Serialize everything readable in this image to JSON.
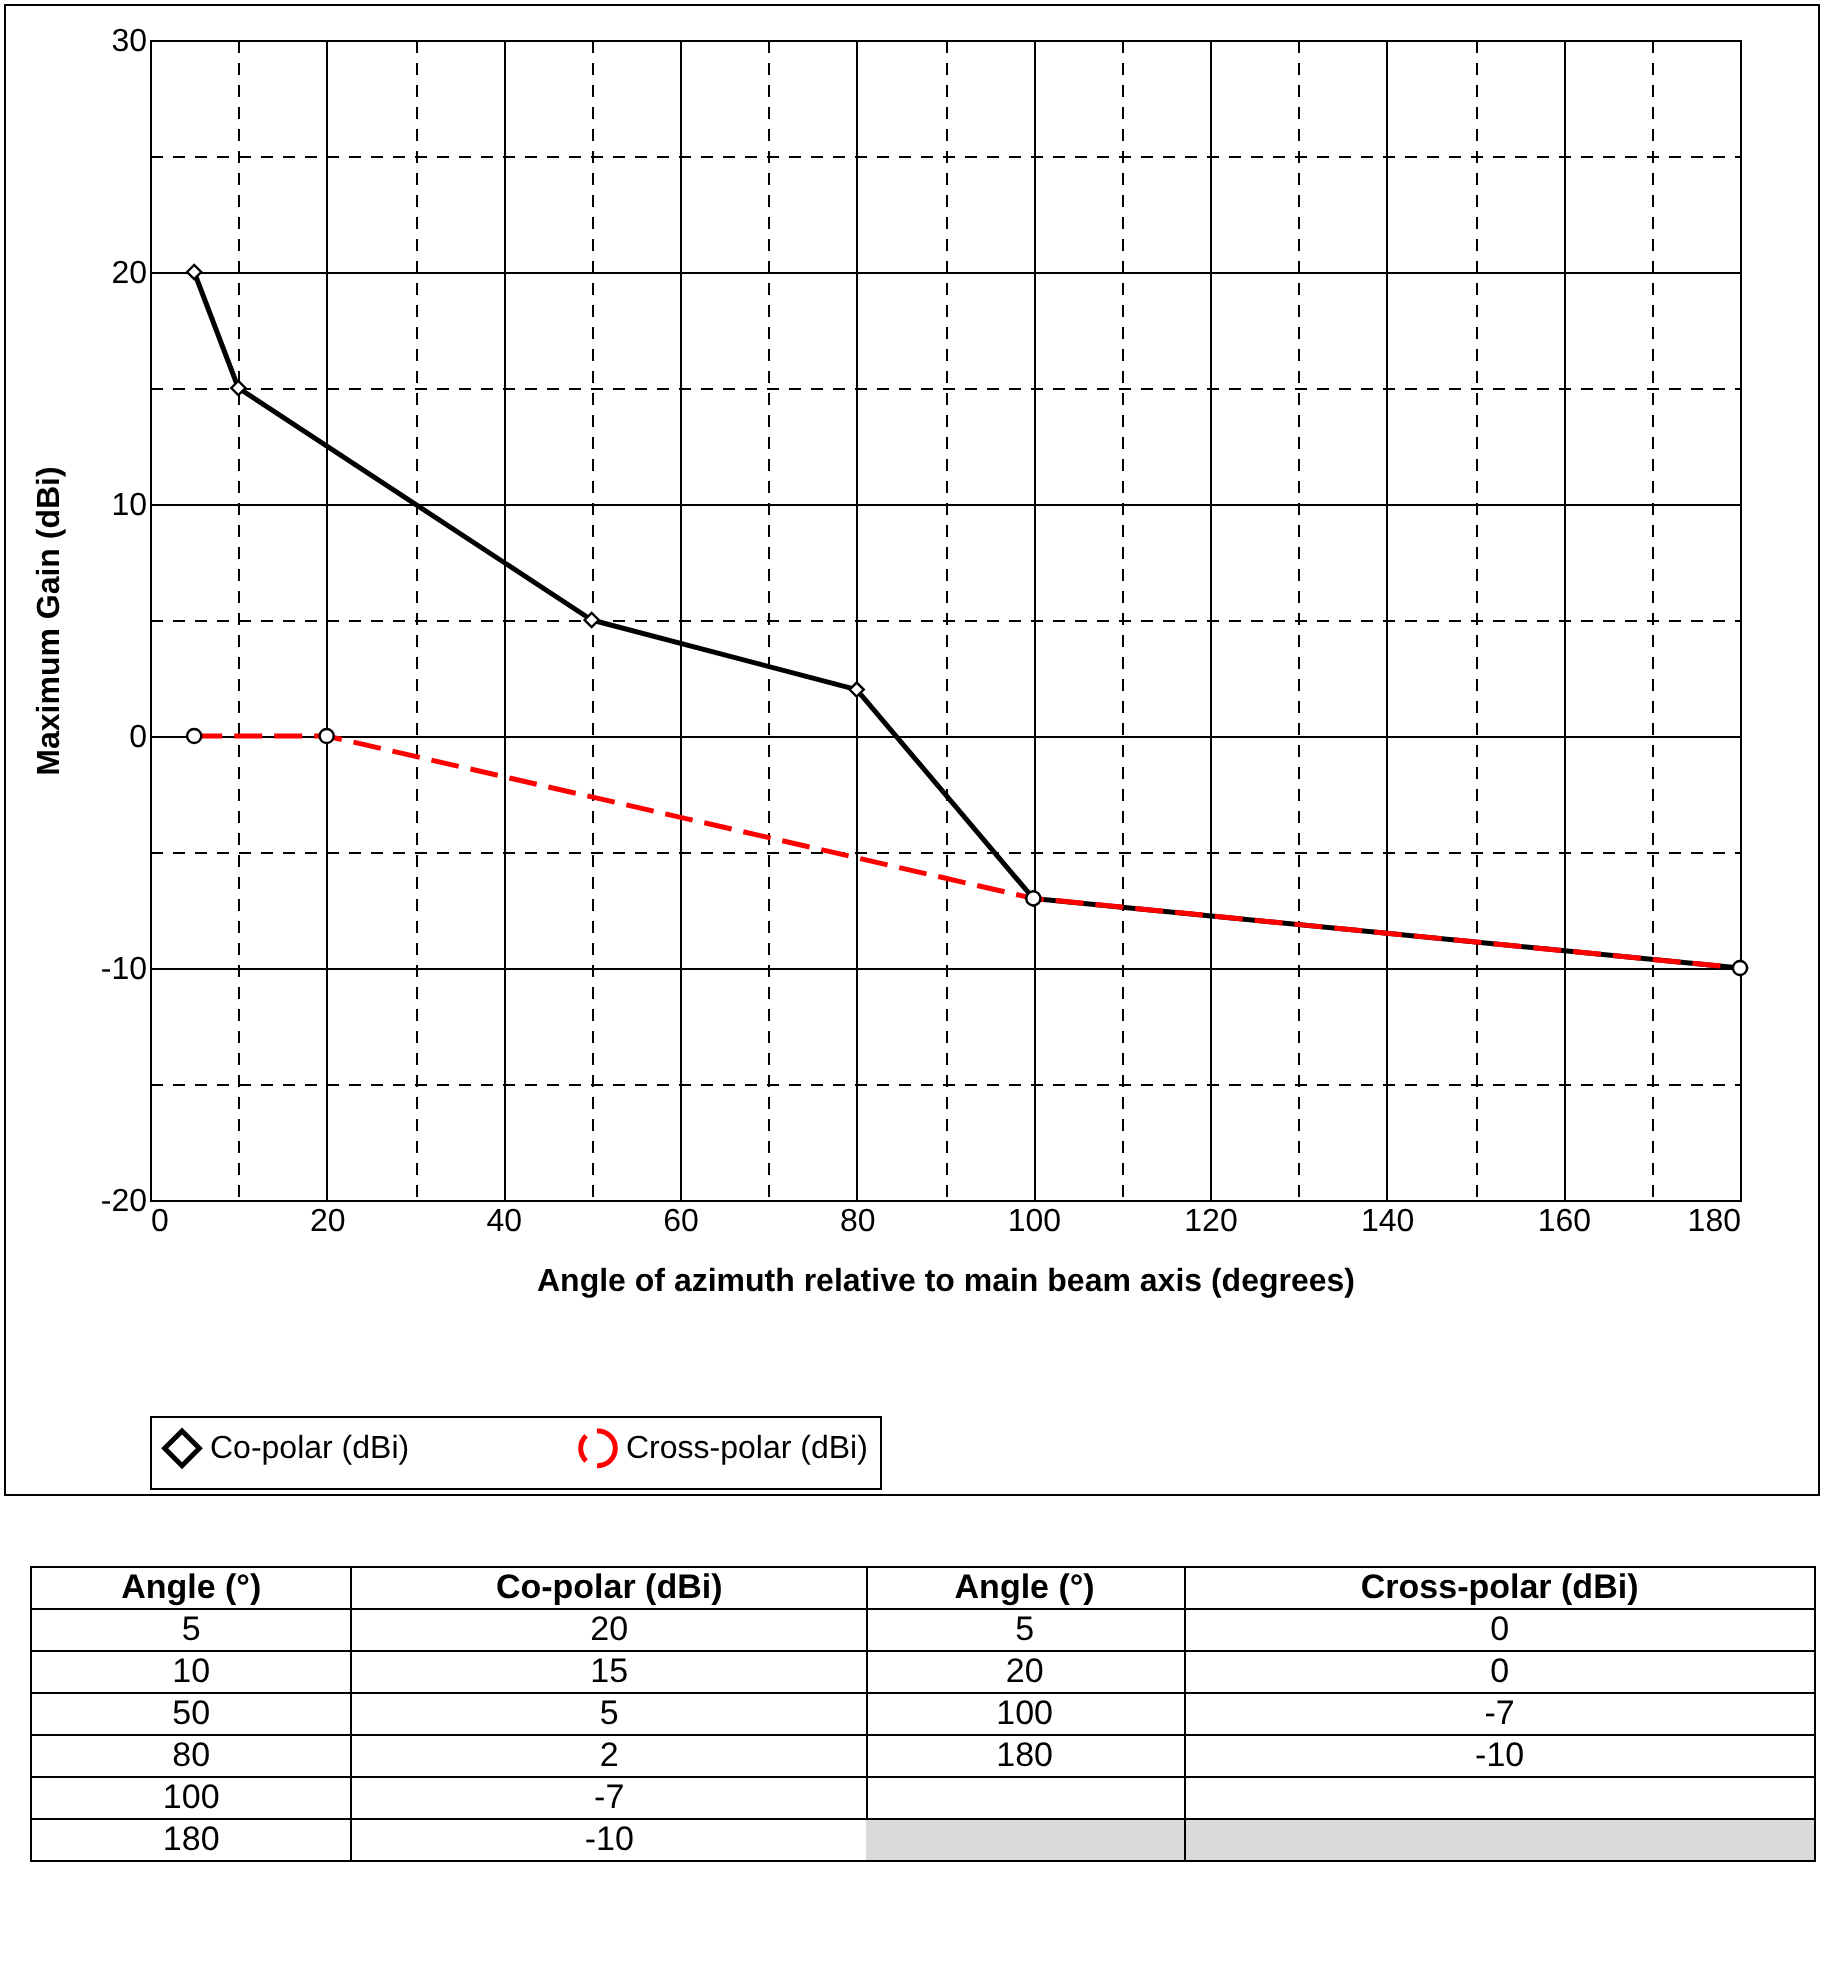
{
  "chart_data": [
    {
      "type": "line",
      "xlabel": "Angle of azimuth relative to main beam axis (degrees)",
      "ylabel": "Maximum Gain (dBi)",
      "xlim": [
        0,
        180
      ],
      "ylim": [
        -20,
        30
      ],
      "xticks": [
        0,
        {
          "value": 10,
          "label": null
        },
        20,
        {
          "value": 30,
          "label": null
        },
        40,
        {
          "value": 50,
          "label": null
        },
        60,
        {
          "value": 70,
          "label": null
        },
        80,
        {
          "value": 90,
          "label": null
        },
        100,
        {
          "value": 110,
          "label": null
        },
        120,
        {
          "value": 130,
          "label": null
        },
        140,
        {
          "value": 150,
          "label": null
        },
        160,
        {
          "value": 170,
          "label": null
        },
        180
      ],
      "yticks": [
        -20,
        {
          "value": -15,
          "label": null
        },
        -10,
        {
          "value": -5,
          "label": null
        },
        0,
        {
          "value": 5,
          "label": null
        },
        10,
        {
          "value": 15,
          "label": null
        },
        20,
        {
          "value": 25,
          "label": null
        },
        30
      ],
      "grid": true,
      "legend": "bottom",
      "series": [
        {
          "name": "Co-polar (dBi)",
          "color": "#000000",
          "marker": "diamond",
          "line_style": "solid",
          "x": [
            5,
            10,
            50,
            80,
            100,
            180
          ],
          "values": [
            20,
            15,
            5,
            2,
            -7,
            -10
          ]
        },
        {
          "name": "Cross-polar (dBi)",
          "color": "#ff0000",
          "marker": "circle",
          "line_style": "dashed",
          "x": [
            5,
            20,
            100,
            180
          ],
          "values": [
            0,
            0,
            -7,
            -10
          ]
        }
      ]
    },
    {
      "type": "other",
      "annotations": [
        "Angle (°)",
        "Co-polar (dBi)",
        "5",
        "20",
        "10",
        "15",
        "50",
        "5",
        "80",
        "2",
        "100",
        "-7",
        "180",
        "-10"
      ]
    },
    {
      "type": "other",
      "annotations": [
        "Angle (°)",
        "Cross-polar (dBi)",
        "5",
        "0",
        "20",
        "0",
        "100",
        "-7",
        "180",
        "-10"
      ]
    }
  ]
}
